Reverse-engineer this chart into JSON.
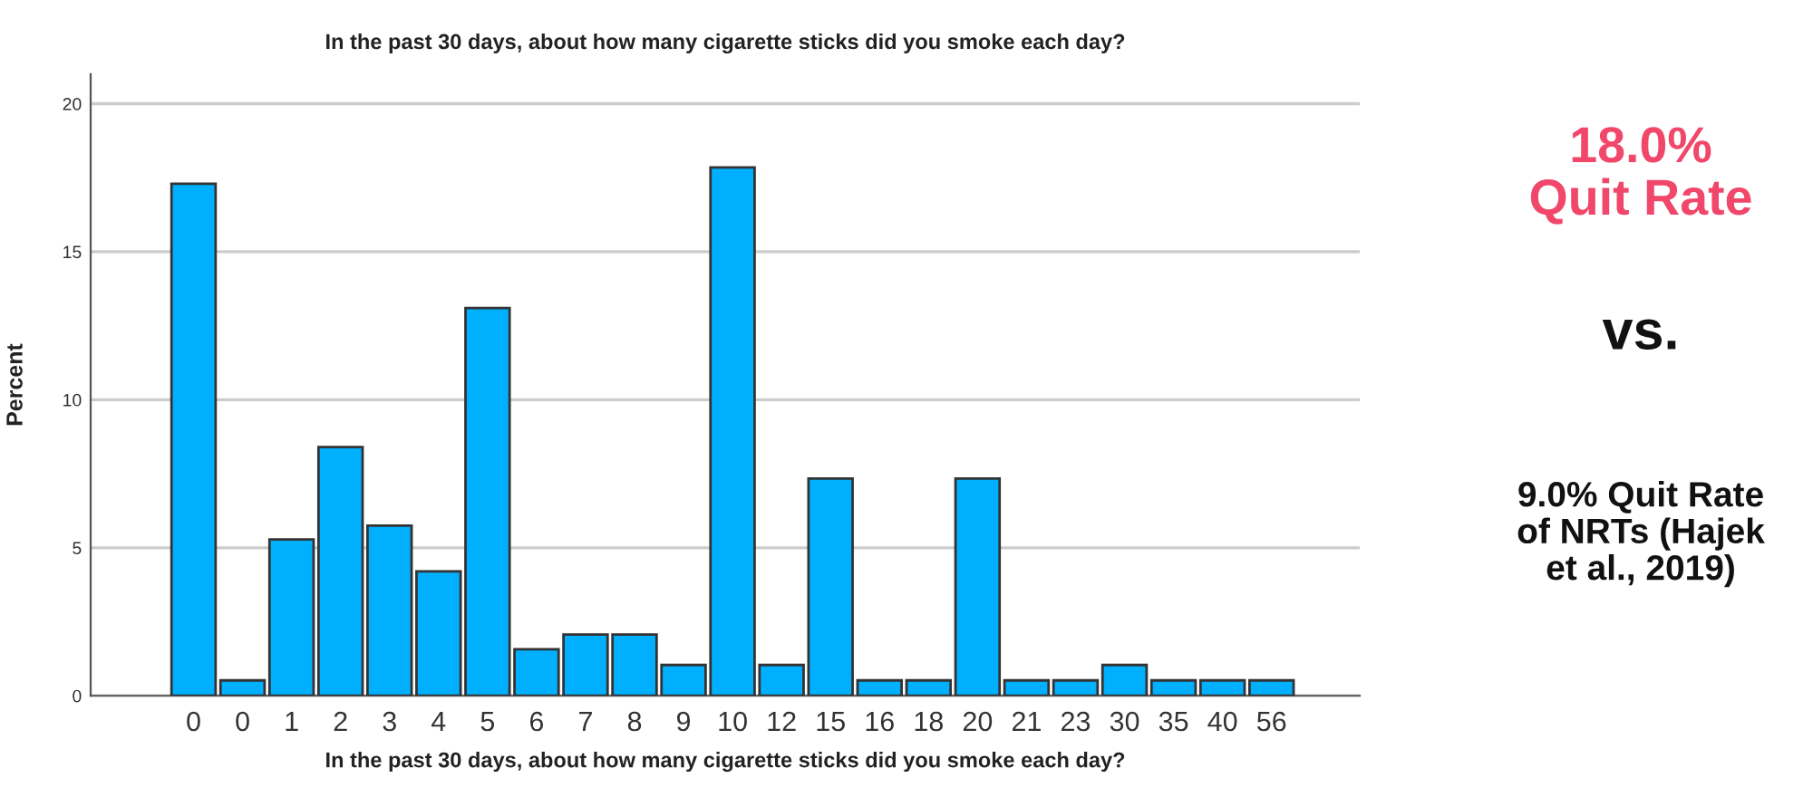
{
  "chart_data": {
    "type": "bar",
    "title": "In the past 30 days, about how many cigarette sticks did you smoke each day?",
    "xlabel": "In the past 30 days, about how many cigarette sticks did you smoke each day?",
    "ylabel": "Percent",
    "categories": [
      "0",
      "0",
      "1",
      "2",
      "3",
      "4",
      "5",
      "6",
      "7",
      "8",
      "9",
      "10",
      "12",
      "15",
      "16",
      "18",
      "20",
      "21",
      "23",
      "30",
      "35",
      "40",
      "56"
    ],
    "values": [
      17.3,
      0.52,
      5.28,
      8.4,
      5.75,
      4.2,
      13.1,
      1.57,
      2.07,
      2.07,
      1.04,
      17.85,
      1.04,
      7.34,
      0.52,
      0.52,
      7.34,
      0.52,
      0.52,
      1.04,
      0.52,
      0.52,
      0.52
    ],
    "color": "#00b0ff",
    "ylim": [
      0,
      21
    ],
    "yticks": [
      0,
      5,
      10,
      15,
      20
    ],
    "grid": "y",
    "annotations": [
      "18.0%\nQuit Rate",
      "vs.",
      "9.0% Quit Rate\nof NRTs (Hajek\net al., 2019)"
    ]
  }
}
